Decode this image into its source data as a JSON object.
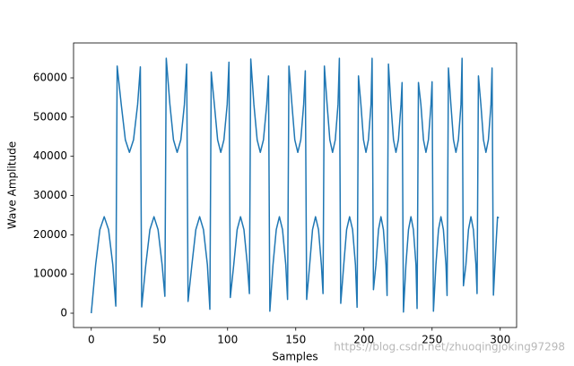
{
  "chart_data": {
    "type": "line",
    "xlabel": "Samples",
    "ylabel": "Wave Amplitude",
    "watermark": "https://blog.csdn.net/zhuoqingjoking97298",
    "x": [
      0,
      3.2,
      6.3,
      9.5,
      12.7,
      15.8,
      18,
      19,
      22,
      25,
      28,
      31,
      34,
      36,
      37,
      40,
      43,
      46,
      49,
      52,
      54,
      55,
      57.7,
      60.3,
      63,
      65.7,
      68.3,
      70,
      71,
      73.8,
      76.7,
      79.5,
      82.3,
      85.2,
      87,
      88,
      90.3,
      92.7,
      95,
      97.3,
      99.7,
      101,
      102,
      104.5,
      107,
      109.5,
      112,
      114.5,
      116,
      117,
      119.3,
      121.7,
      124,
      126.3,
      128.7,
      130,
      131,
      133.3,
      135.7,
      138,
      140.3,
      142.7,
      144,
      145,
      147.2,
      149.3,
      151.5,
      153.7,
      155.8,
      157,
      158,
      160.2,
      162.3,
      164.5,
      166.7,
      168.8,
      170,
      171,
      173,
      175,
      177,
      179,
      181,
      182,
      183,
      185.2,
      187.3,
      189.5,
      191.7,
      193.8,
      195,
      196,
      197.8,
      199.7,
      201.5,
      203.3,
      205.2,
      206,
      207,
      208.8,
      210.7,
      212.5,
      214.3,
      216.2,
      217,
      218,
      219.8,
      221.7,
      223.5,
      225.3,
      227.2,
      228,
      229,
      230.8,
      232.7,
      234.5,
      236.3,
      238.2,
      239,
      240,
      241.8,
      243.7,
      245.5,
      247.3,
      249.2,
      250,
      251,
      252.8,
      254.7,
      256.5,
      258.3,
      260.2,
      261,
      262,
      263.8,
      265.7,
      267.5,
      269.3,
      271.2,
      272,
      273,
      274.8,
      276.7,
      278.5,
      280.3,
      282.2,
      283,
      284,
      285.8,
      287.7,
      289.5,
      291.3,
      293.2,
      294,
      295,
      296.5,
      298,
      299
    ],
    "series": [
      {
        "color": "#1f77b4",
        "values": [
          0,
          12300,
          21300,
          24600,
          21300,
          12300,
          1800,
          63000,
          53200,
          44200,
          41000,
          44200,
          53200,
          62800,
          1600,
          12300,
          21300,
          24600,
          21300,
          12300,
          4300,
          65000,
          53200,
          44200,
          41000,
          44200,
          53200,
          63500,
          3000,
          12300,
          21300,
          24600,
          21300,
          12300,
          1000,
          61500,
          53200,
          44200,
          41000,
          44200,
          53200,
          64000,
          4000,
          12300,
          21300,
          24600,
          21300,
          12300,
          5000,
          64800,
          53200,
          44200,
          41000,
          44200,
          53200,
          60500,
          500,
          12300,
          21300,
          24600,
          21300,
          12300,
          3500,
          63000,
          53200,
          44200,
          41000,
          44200,
          53200,
          61800,
          3500,
          12300,
          21300,
          24600,
          21300,
          12300,
          5000,
          63000,
          53200,
          44200,
          41000,
          44200,
          53200,
          65000,
          2500,
          12300,
          21300,
          24600,
          21300,
          12300,
          1500,
          60500,
          53200,
          44200,
          41000,
          44200,
          53200,
          65000,
          6000,
          12300,
          21300,
          24600,
          21300,
          12300,
          4500,
          63500,
          53200,
          44200,
          41000,
          44200,
          53200,
          58800,
          300,
          12300,
          21300,
          24600,
          21300,
          12300,
          1200,
          58800,
          53200,
          44200,
          41000,
          44200,
          53200,
          59000,
          500,
          12300,
          21300,
          24600,
          21300,
          12300,
          4500,
          62500,
          53200,
          44200,
          41000,
          44200,
          53200,
          65000,
          7000,
          12300,
          21300,
          24600,
          21300,
          12300,
          5000,
          60500,
          53200,
          44200,
          41000,
          44200,
          53200,
          62500,
          4600,
          15000,
          24500,
          24300
        ]
      }
    ],
    "xlim": [
      -13,
      312
    ],
    "xticks": [
      0,
      50,
      100,
      150,
      200,
      250,
      300
    ],
    "ylim": [
      -3650,
      68900
    ],
    "yticks": [
      0,
      10000,
      20000,
      30000,
      40000,
      50000,
      60000
    ],
    "grid": false
  }
}
